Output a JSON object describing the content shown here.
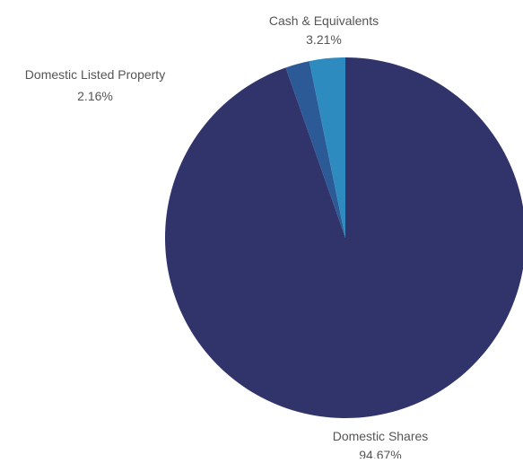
{
  "chart_data": {
    "type": "pie",
    "categories": [
      "Domestic Shares",
      "Domestic Listed Property",
      "Cash & Equivalents"
    ],
    "values": [
      94.67,
      2.16,
      3.21
    ],
    "value_labels": [
      "94.67%",
      "2.16%",
      "3.21%"
    ],
    "colors": [
      "#31346b",
      "#2b5a96",
      "#2e8bc0"
    ],
    "start_angle": "12 o'clock",
    "direction": "clockwise",
    "legend": "none"
  }
}
